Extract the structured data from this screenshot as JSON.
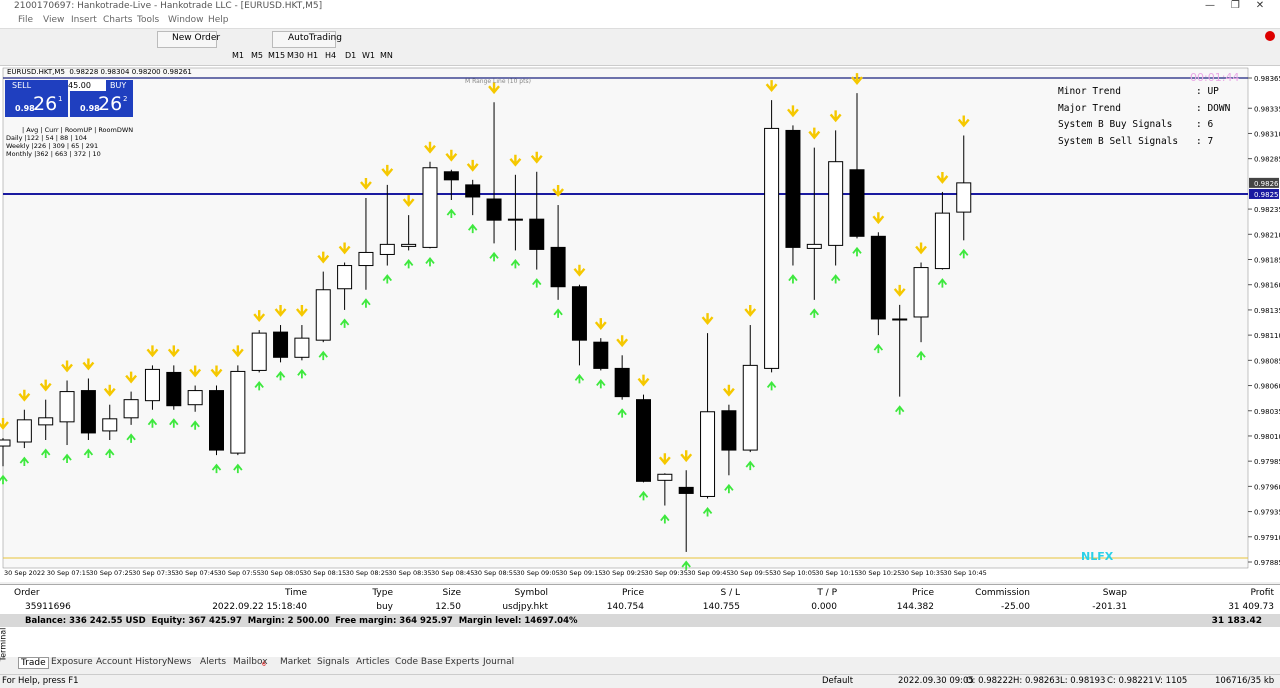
{
  "window": {
    "title": "2100170697: Hankotrade-Live - Hankotrade LLC - [EURUSD.HKT,M5]",
    "menu": [
      "File",
      "View",
      "Insert",
      "Charts",
      "Tools",
      "Window",
      "Help"
    ],
    "toolbar": {
      "new_order": "New Order",
      "auto_trading": "AutoTrading",
      "timeframes": [
        "M1",
        "M5",
        "M15",
        "M30",
        "H1",
        "H4",
        "D1",
        "W1",
        "MN"
      ]
    }
  },
  "chart": {
    "header": "EURUSD.HKT,M5  0.98228 0.98304 0.98200 0.98261",
    "one_click": {
      "sell": "SELL",
      "lots": "45.00",
      "buy": "BUY",
      "sell_price": {
        "big": "0.98",
        "pips": "26",
        "point": "1"
      },
      "buy_price": {
        "big": "0.98",
        "pips": "26",
        "point": "2"
      }
    },
    "stats": [
      "| Avg | Curr | RoomUP | RoomDWN",
      "Daily |122 | 54 | 88 | 104",
      "Weekly |226 | 309 | 65 | 291",
      "Monthly |362 | 663 | 372 | 10"
    ],
    "panel": [
      {
        "label": "Minor Trend",
        "value": ": UP"
      },
      {
        "label": "Major Trend",
        "value": ": DOWN"
      },
      {
        "label": "System B Buy Signals",
        "value": ": 6"
      },
      {
        "label": "System B Sell Signals",
        "value": ": 7"
      }
    ],
    "timer": "00:01:44",
    "range_label": "M Range Line (10 pts)",
    "watermark": "NLFX",
    "bid": 0.98261,
    "level": {
      "value": 0.9825,
      "label": "0.98250"
    }
  },
  "chart_data": {
    "type": "candlestick",
    "x_labels": [
      "30 Sep 2022",
      "30 Sep 07:15",
      "30 Sep 07:25",
      "30 Sep 07:35",
      "30 Sep 07:45",
      "30 Sep 07:55",
      "30 Sep 08:05",
      "30 Sep 08:15",
      "30 Sep 08:25",
      "30 Sep 08:35",
      "30 Sep 08:45",
      "30 Sep 08:55",
      "30 Sep 09:05",
      "30 Sep 09:15",
      "30 Sep 09:25",
      "30 Sep 09:35",
      "30 Sep 09:45",
      "30 Sep 09:55",
      "30 Sep 10:05",
      "30 Sep 10:15",
      "30 Sep 10:25",
      "30 Sep 10:35",
      "30 Sep 10:45"
    ],
    "ylim": [
      0.97885,
      0.98365
    ],
    "yticks": [
      0.98365,
      0.98335,
      {
        "value": 0.9831,
        "label": "0.98310"
      },
      0.98285,
      0.98235,
      {
        "value": 0.9821,
        "label": "0.98210"
      },
      0.98185,
      {
        "value": 0.9816,
        "label": "0.98160"
      },
      0.98135,
      {
        "value": 0.9811,
        "label": "0.98110"
      },
      0.98085,
      {
        "value": 0.9806,
        "label": "0.98060"
      },
      0.98035,
      {
        "value": 0.9801,
        "label": "0.98010"
      },
      0.97985,
      {
        "value": 0.9796,
        "label": "0.97960"
      },
      0.97935,
      {
        "value": 0.9791,
        "label": "0.97910"
      },
      0.97885
    ],
    "open": [
      0.98,
      0.98004,
      0.98021,
      0.98024,
      0.98055,
      0.98015,
      0.98028,
      0.98045,
      0.98073,
      0.98041,
      0.98055,
      0.97993,
      0.98075,
      0.98113,
      0.98088,
      0.98105,
      0.98156,
      0.98179,
      0.9819,
      0.98198,
      0.98197,
      0.98272,
      0.98259,
      0.98245,
      0.98225,
      0.98225,
      0.98197,
      0.98158,
      0.98103,
      0.98077,
      0.98046,
      0.97966,
      0.97959,
      0.9795,
      0.98035,
      0.97996,
      0.98077,
      0.98313,
      0.98196,
      0.98199,
      0.98274,
      0.98208,
      0.98126,
      0.98128,
      0.98176,
      0.98232
    ],
    "high": [
      0.98008,
      0.98036,
      0.98046,
      0.98065,
      0.98067,
      0.98041,
      0.98054,
      0.9808,
      0.9808,
      0.9806,
      0.9806,
      0.9808,
      0.98115,
      0.9812,
      0.9812,
      0.98173,
      0.98182,
      0.98246,
      0.98259,
      0.98229,
      0.98282,
      0.98274,
      0.98264,
      0.98341,
      0.98269,
      0.98272,
      0.98239,
      0.9816,
      0.98107,
      0.9809,
      0.98051,
      0.97973,
      0.97976,
      0.98112,
      0.98041,
      0.9812,
      0.98343,
      0.98318,
      0.98296,
      0.98313,
      0.9835,
      0.98212,
      0.9814,
      0.98182,
      0.98252,
      0.98308
    ],
    "low": [
      0.9798,
      0.97998,
      0.98006,
      0.98001,
      0.98006,
      0.98006,
      0.98021,
      0.98036,
      0.98036,
      0.98034,
      0.97991,
      0.97991,
      0.98073,
      0.98083,
      0.98085,
      0.98103,
      0.98135,
      0.98155,
      0.98179,
      0.98194,
      0.98196,
      0.98244,
      0.98229,
      0.98201,
      0.98194,
      0.98175,
      0.98145,
      0.9808,
      0.98075,
      0.98046,
      0.97964,
      0.97941,
      0.97895,
      0.97948,
      0.97971,
      0.97994,
      0.98073,
      0.98179,
      0.98145,
      0.98179,
      0.98206,
      0.9811,
      0.98049,
      0.98103,
      0.98175,
      0.98204
    ],
    "close": [
      0.98006,
      0.98026,
      0.98028,
      0.98054,
      0.98013,
      0.98027,
      0.98046,
      0.98076,
      0.9804,
      0.98055,
      0.97996,
      0.98074,
      0.98112,
      0.98088,
      0.98107,
      0.98155,
      0.98179,
      0.98192,
      0.982,
      0.982,
      0.98276,
      0.98264,
      0.98247,
      0.98224,
      0.98225,
      0.98195,
      0.98158,
      0.98105,
      0.98077,
      0.98049,
      0.97965,
      0.97972,
      0.97953,
      0.98034,
      0.97996,
      0.9808,
      0.98315,
      0.98197,
      0.982,
      0.98282,
      0.98208,
      0.98126,
      0.98126,
      0.98177,
      0.98231,
      0.98261
    ]
  },
  "terminal": {
    "side_label": "Terminal",
    "columns": [
      "Order",
      "Time",
      "Type",
      "Size",
      "Symbol",
      "Price",
      "S / L",
      "T / P",
      "Price",
      "Commission",
      "Swap",
      "Profit"
    ],
    "rows": [
      [
        "35911696",
        "2022.09.22 15:18:40",
        "buy",
        "12.50",
        "usdjpy.hkt",
        "140.754",
        "140.755",
        "0.000",
        "144.382",
        "-25.00",
        "-201.31",
        "31 409.73"
      ]
    ],
    "balance": "Balance: 336 242.55 USD  Equity: 367 425.97  Margin: 2 500.00  Free margin: 364 925.97  Margin level: 14697.04%",
    "balance_profit": "31 183.42",
    "tabs": [
      "Trade",
      "Exposure",
      "Account History",
      "News",
      "Alerts",
      "Mailbox",
      "Market",
      "Signals",
      "Articles",
      "Code Base",
      "Experts",
      "Journal"
    ],
    "mail_count": "6"
  },
  "status": [
    "For Help, press F1",
    "Default",
    "2022.09.30 09:05",
    "O: 0.98222",
    "H: 0.98263",
    "L: 0.98193",
    "C: 0.98221",
    "V: 1105",
    "106716/35 kb"
  ]
}
